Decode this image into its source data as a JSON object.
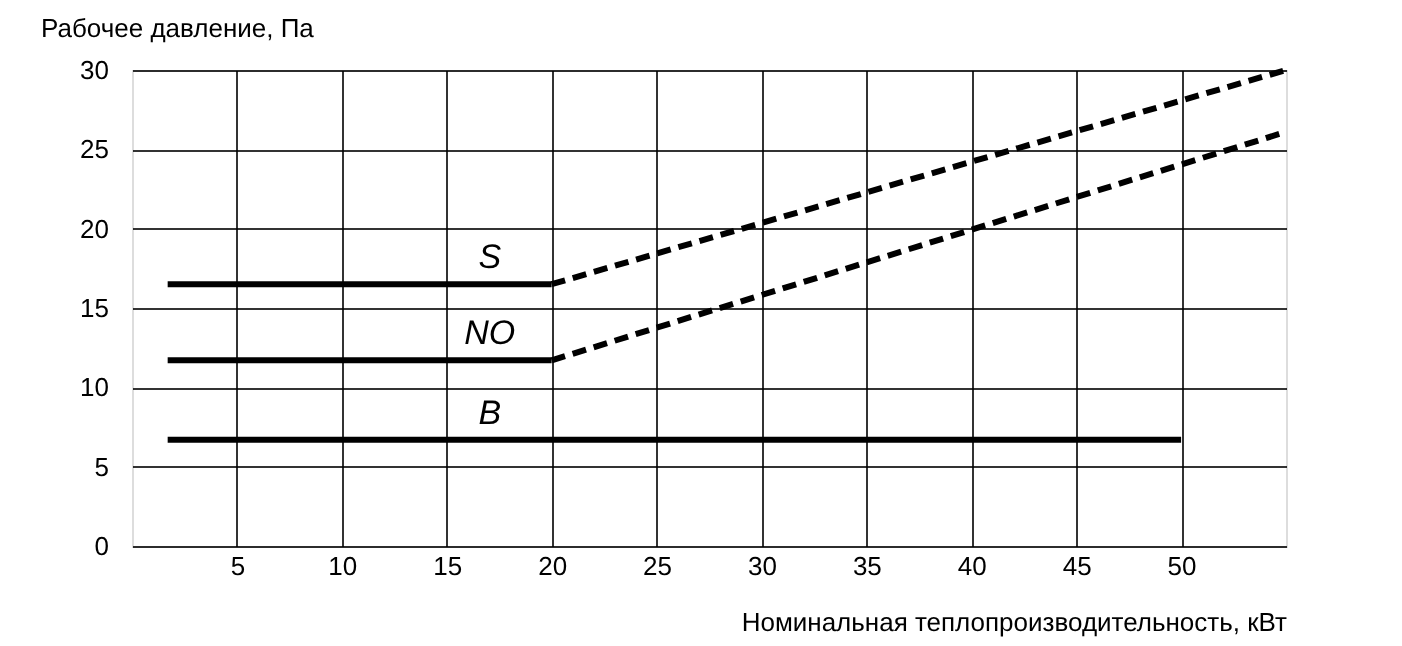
{
  "chart_data": {
    "type": "line",
    "xlabel": "Номинальная теплопроизводительность, кВт",
    "ylabel": "Рабочее давление, Па",
    "xlim": [
      0,
      55
    ],
    "ylim": [
      0,
      30
    ],
    "xticks": [
      5,
      10,
      15,
      20,
      25,
      30,
      35,
      40,
      45,
      50
    ],
    "yticks": [
      0,
      5,
      10,
      15,
      20,
      25,
      30
    ],
    "grid": true,
    "marker": "none",
    "series": [
      {
        "name": "S",
        "color": "#000000",
        "line_style": "solid",
        "x": [
          1.7,
          20
        ],
        "values": [
          16.5,
          16.5
        ]
      },
      {
        "color": "#000000",
        "line_style": "dashed",
        "x": [
          20,
          55
        ],
        "values": [
          16.5,
          30
        ]
      },
      {
        "name": "NO",
        "color": "#000000",
        "line_style": "solid",
        "x": [
          1.7,
          20
        ],
        "values": [
          11.7,
          11.7
        ]
      },
      {
        "color": "#000000",
        "line_style": "dashed",
        "x": [
          20,
          55
        ],
        "values": [
          11.7,
          26.1
        ]
      },
      {
        "name": "B",
        "color": "#000000",
        "line_style": "solid",
        "x": [
          1.7,
          50
        ],
        "values": [
          6.7,
          6.7
        ]
      }
    ]
  }
}
